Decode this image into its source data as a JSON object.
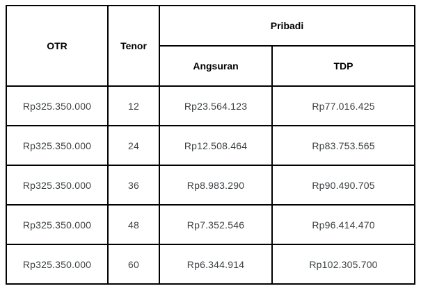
{
  "table": {
    "headers": {
      "otr": "OTR",
      "tenor": "Tenor",
      "group": "Pribadi",
      "angsuran": "Angsuran",
      "tdp": "TDP"
    },
    "rows": [
      {
        "otr": "Rp325.350.000",
        "tenor": "12",
        "angsuran": "Rp23.564.123",
        "tdp": "Rp77.016.425"
      },
      {
        "otr": "Rp325.350.000",
        "tenor": "24",
        "angsuran": "Rp12.508.464",
        "tdp": "Rp83.753.565"
      },
      {
        "otr": "Rp325.350.000",
        "tenor": "36",
        "angsuran": "Rp8.983.290",
        "tdp": "Rp90.490.705"
      },
      {
        "otr": "Rp325.350.000",
        "tenor": "48",
        "angsuran": "Rp7.352.546",
        "tdp": "Rp96.414.470"
      },
      {
        "otr": "Rp325.350.000",
        "tenor": "60",
        "angsuran": "Rp6.344.914",
        "tdp": "Rp102.305.700"
      }
    ],
    "colors": {
      "border": "#000000",
      "header_text": "#000000",
      "cell_text": "#3c4043",
      "background": "#ffffff"
    }
  },
  "chart_data": {
    "type": "table",
    "title": "",
    "columns": [
      "OTR",
      "Tenor",
      "Pribadi - Angsuran",
      "Pribadi - TDP"
    ],
    "rows": [
      [
        "Rp325.350.000",
        12,
        "Rp23.564.123",
        "Rp77.016.425"
      ],
      [
        "Rp325.350.000",
        24,
        "Rp12.508.464",
        "Rp83.753.565"
      ],
      [
        "Rp325.350.000",
        36,
        "Rp8.983.290",
        "Rp90.490.705"
      ],
      [
        "Rp325.350.000",
        48,
        "Rp7.352.546",
        "Rp96.414.470"
      ],
      [
        "Rp325.350.000",
        60,
        "Rp6.344.914",
        "Rp102.305.700"
      ]
    ]
  }
}
